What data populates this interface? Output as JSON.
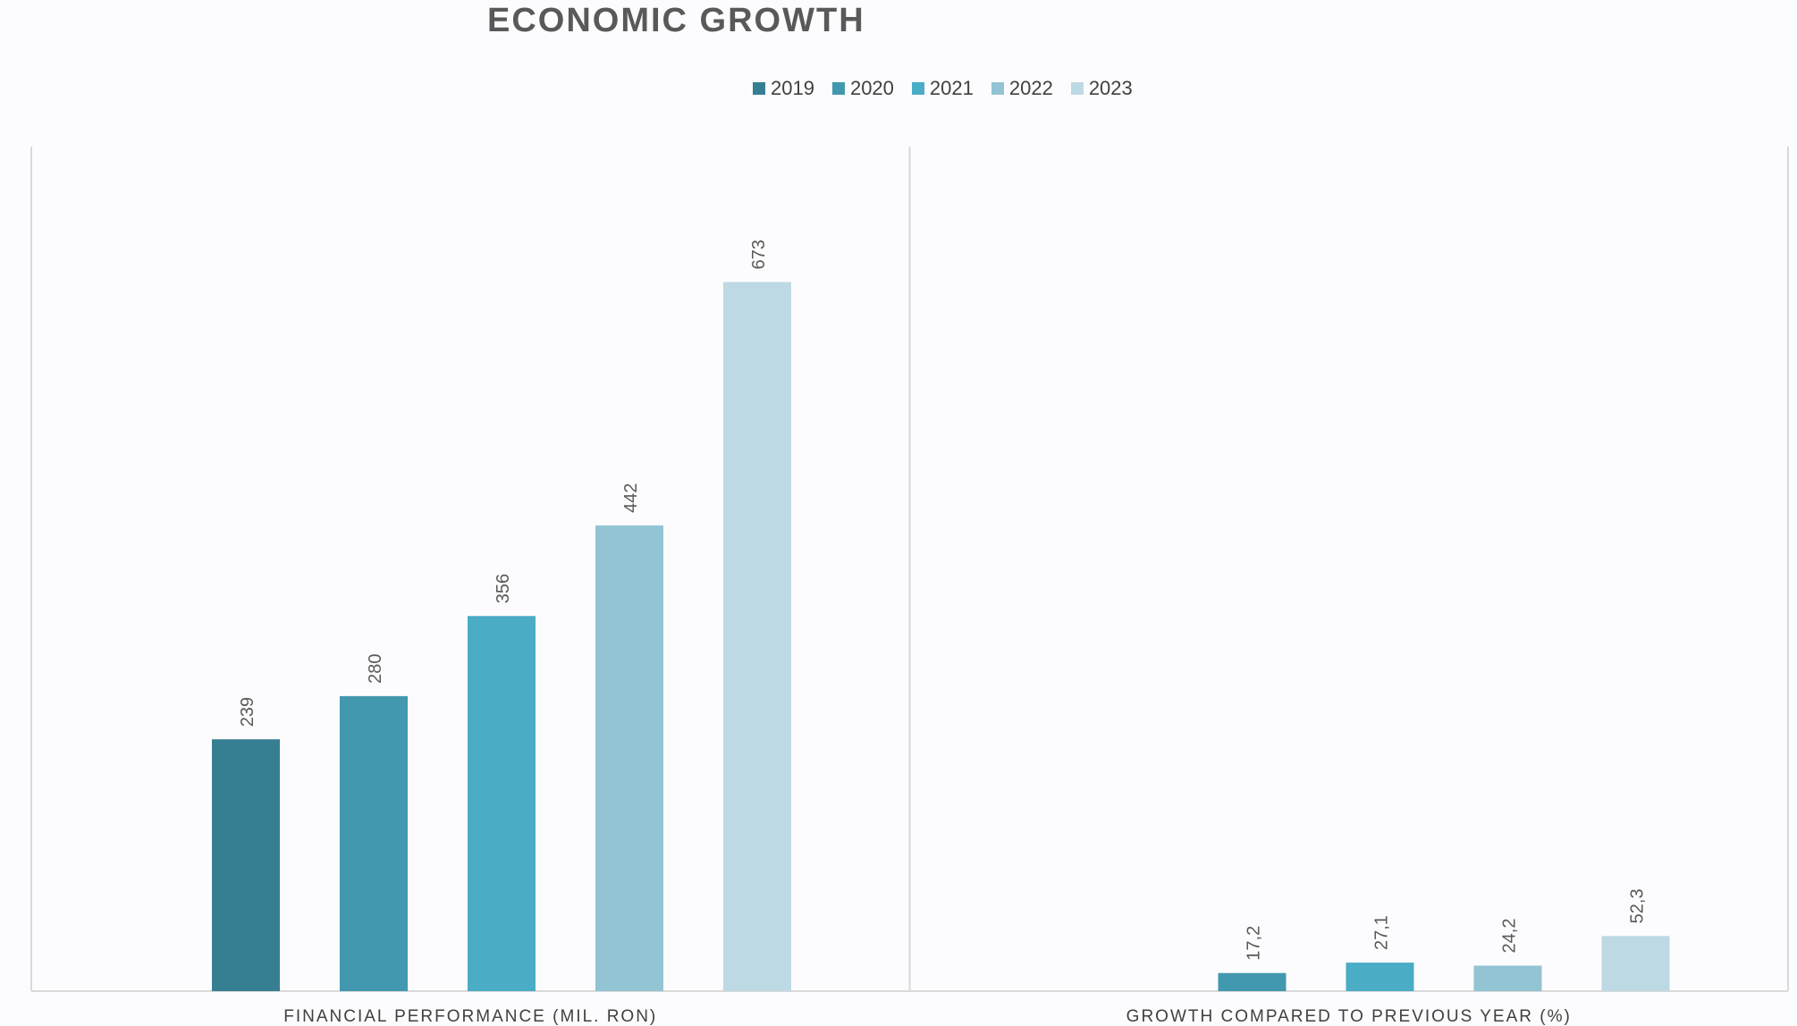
{
  "chart_data": {
    "type": "bar",
    "title": "ECONOMIC GROWTH",
    "legend_position": "top",
    "grid": false,
    "categories": [
      "FINANCIAL PERFORMANCE (MIL. RON)",
      "GROWTH COMPARED TO PREVIOUS YEAR (%)"
    ],
    "ylim": [
      0,
      700
    ],
    "series": [
      {
        "name": "2019",
        "color": "#367f92",
        "values": [
          239,
          null
        ],
        "labels": [
          "239",
          ""
        ]
      },
      {
        "name": "2020",
        "color": "#4298ae",
        "values": [
          280,
          17.2
        ],
        "labels": [
          "280",
          "17,2"
        ]
      },
      {
        "name": "2021",
        "color": "#4bacc6",
        "values": [
          356,
          27.1
        ],
        "labels": [
          "356",
          "27,1"
        ]
      },
      {
        "name": "2022",
        "color": "#93c4d4",
        "values": [
          442,
          24.2
        ],
        "labels": [
          "442",
          "24,2"
        ]
      },
      {
        "name": "2023",
        "color": "#bdd9e4",
        "values": [
          673,
          52.3
        ],
        "labels": [
          "673",
          "52,3"
        ]
      }
    ]
  }
}
